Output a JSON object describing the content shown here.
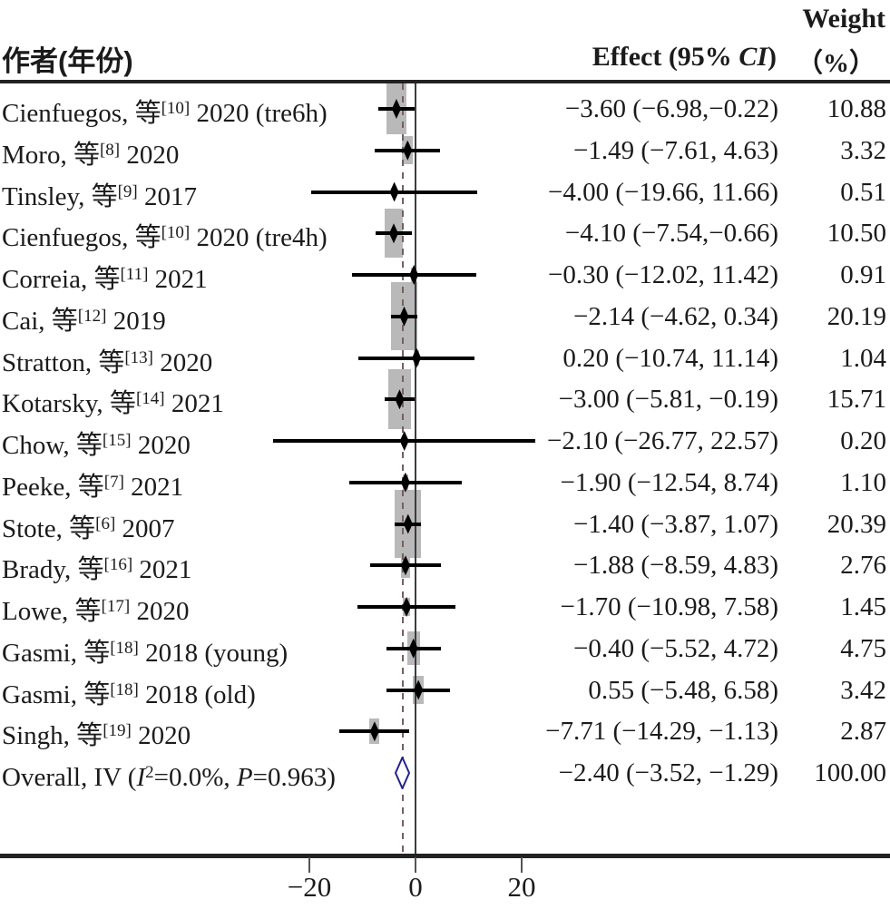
{
  "header": {
    "author_col": "作者(年份)",
    "effect_col_pre": "Effect (95% ",
    "effect_col_italic": "CI",
    "effect_col_post": ")",
    "weight_line1": "Weight",
    "weight_line2": "（%）"
  },
  "colors": {
    "weight_box": "#b9b9b9",
    "ci_line": "#000000",
    "point_marker": "#000000",
    "zero_line": "#3c3c3c",
    "overall_dashed_line": "#75605f",
    "diamond_stroke": "#23238c",
    "diamond_fill": "#ffffff",
    "text": "#1b1b1b",
    "rule": "#222222"
  },
  "chart_data": {
    "type": "forest",
    "x_ticks": [
      -20,
      0,
      20
    ],
    "x_tick_labels": [
      "−20",
      "0",
      "20"
    ],
    "columns": [
      "作者(年份)",
      "Effect (95% CI)",
      "Weight（%）"
    ],
    "studies": [
      {
        "label_pre": "Cienfuegos, 等",
        "label_sup": "[10]",
        "label_post": " 2020 (tre6h)",
        "effect": -3.6,
        "ci_low": -6.98,
        "ci_high": -0.22,
        "effect_text": "−3.60 (−6.98,−0.22)",
        "weight": 10.88,
        "weight_text": "10.88"
      },
      {
        "label_pre": "Moro, 等",
        "label_sup": "[8]",
        "label_post": " 2020",
        "effect": -1.49,
        "ci_low": -7.61,
        "ci_high": 4.63,
        "effect_text": "−1.49 (−7.61, 4.63)",
        "weight": 3.32,
        "weight_text": "3.32"
      },
      {
        "label_pre": "Tinsley, 等",
        "label_sup": "[9]",
        "label_post": " 2017",
        "effect": -4.0,
        "ci_low": -19.66,
        "ci_high": 11.66,
        "effect_text": "−4.00 (−19.66, 11.66)",
        "weight": 0.51,
        "weight_text": "0.51"
      },
      {
        "label_pre": "Cienfuegos, 等",
        "label_sup": "[10]",
        "label_post": " 2020 (tre4h)",
        "effect": -4.1,
        "ci_low": -7.54,
        "ci_high": -0.66,
        "effect_text": "−4.10 (−7.54,−0.66)",
        "weight": 10.5,
        "weight_text": "10.50"
      },
      {
        "label_pre": "Correia, 等",
        "label_sup": "[11]",
        "label_post": " 2021",
        "effect": -0.3,
        "ci_low": -12.02,
        "ci_high": 11.42,
        "effect_text": "−0.30 (−12.02, 11.42)",
        "weight": 0.91,
        "weight_text": "0.91"
      },
      {
        "label_pre": "Cai, 等",
        "label_sup": "[12]",
        "label_post": " 2019",
        "effect": -2.14,
        "ci_low": -4.62,
        "ci_high": 0.34,
        "effect_text": "−2.14 (−4.62, 0.34)",
        "weight": 20.19,
        "weight_text": "20.19"
      },
      {
        "label_pre": "Stratton, 等",
        "label_sup": "[13]",
        "label_post": " 2020",
        "effect": 0.2,
        "ci_low": -10.74,
        "ci_high": 11.14,
        "effect_text": "0.20 (−10.74, 11.14)",
        "weight": 1.04,
        "weight_text": "1.04"
      },
      {
        "label_pre": "Kotarsky, 等",
        "label_sup": "[14]",
        "label_post": " 2021",
        "effect": -3.0,
        "ci_low": -5.81,
        "ci_high": -0.19,
        "effect_text": "−3.00 (−5.81, −0.19)",
        "weight": 15.71,
        "weight_text": "15.71"
      },
      {
        "label_pre": "Chow, 等",
        "label_sup": "[15]",
        "label_post": " 2020",
        "effect": -2.1,
        "ci_low": -26.77,
        "ci_high": 22.57,
        "effect_text": "−2.10 (−26.77, 22.57)",
        "weight": 0.2,
        "weight_text": "0.20"
      },
      {
        "label_pre": "Peeke, 等",
        "label_sup": "[7]",
        "label_post": " 2021",
        "effect": -1.9,
        "ci_low": -12.54,
        "ci_high": 8.74,
        "effect_text": "−1.90 (−12.54, 8.74)",
        "weight": 1.1,
        "weight_text": "1.10"
      },
      {
        "label_pre": "Stote, 等",
        "label_sup": "[6]",
        "label_post": " 2007",
        "effect": -1.4,
        "ci_low": -3.87,
        "ci_high": 1.07,
        "effect_text": "−1.40 (−3.87, 1.07)",
        "weight": 20.39,
        "weight_text": "20.39"
      },
      {
        "label_pre": "Brady, 等",
        "label_sup": "[16]",
        "label_post": " 2021",
        "effect": -1.88,
        "ci_low": -8.59,
        "ci_high": 4.83,
        "effect_text": "−1.88 (−8.59, 4.83)",
        "weight": 2.76,
        "weight_text": "2.76"
      },
      {
        "label_pre": "Lowe, 等",
        "label_sup": "[17]",
        "label_post": " 2020",
        "effect": -1.7,
        "ci_low": -10.98,
        "ci_high": 7.58,
        "effect_text": "−1.70 (−10.98, 7.58)",
        "weight": 1.45,
        "weight_text": "1.45"
      },
      {
        "label_pre": "Gasmi, 等",
        "label_sup": "[18]",
        "label_post": " 2018 (young)",
        "effect": -0.4,
        "ci_low": -5.52,
        "ci_high": 4.72,
        "effect_text": "−0.40 (−5.52, 4.72)",
        "weight": 4.75,
        "weight_text": "4.75"
      },
      {
        "label_pre": "Gasmi, 等",
        "label_sup": "[18]",
        "label_post": " 2018 (old)",
        "effect": 0.55,
        "ci_low": -5.48,
        "ci_high": 6.58,
        "effect_text": "0.55 (−5.48, 6.58)",
        "weight": 3.42,
        "weight_text": "3.42"
      },
      {
        "label_pre": "Singh, 等",
        "label_sup": "[19]",
        "label_post": " 2020",
        "effect": -7.71,
        "ci_low": -14.29,
        "ci_high": -1.13,
        "effect_text": "−7.71 (−14.29, −1.13)",
        "weight": 2.87,
        "weight_text": "2.87"
      }
    ],
    "overall": {
      "label": {
        "pre": "Overall, IV (",
        "i_sym": "I",
        "i_sup": "2",
        "mid": "=0.0%, ",
        "p_sym": "P",
        "post": "=0.963)"
      },
      "effect": -2.4,
      "ci_low": -3.52,
      "ci_high": -1.29,
      "effect_text": "−2.40 (−3.52, −1.29)",
      "weight": 100.0,
      "weight_text": "100.00"
    }
  }
}
